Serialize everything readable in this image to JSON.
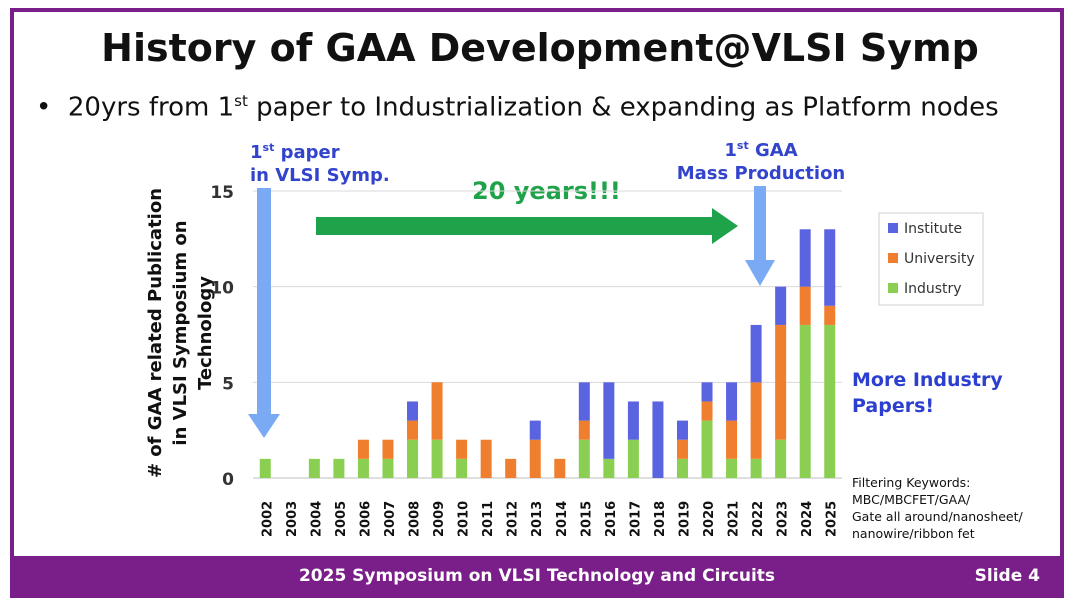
{
  "slide": {
    "title": "History of GAA Development@VLSI Symp",
    "bullet_main": "20yrs from 1",
    "bullet_sup": "st",
    "bullet_rest": " paper to Industrialization & expanding as Platform nodes",
    "footer": "2025 Symposium on VLSI Technology and Circuits",
    "slide_number": "Slide 4",
    "accent_color": "#7a1f8a"
  },
  "annotations": {
    "first_paper_num": "1",
    "first_paper_sup": "st",
    "first_paper_word": " paper",
    "first_paper_line2": "in VLSI Symp.",
    "mass_num": "1",
    "mass_sup": "st",
    "mass_word": " GAA",
    "mass_line2": "Mass Production",
    "twenty_years": "20 years!!!",
    "more_industry_line1": "More Industry",
    "more_industry_line2": "Papers!",
    "filter_lines": [
      "Filtering Keywords:",
      "MBC/MBCFET/GAA/",
      "Gate all around/nanosheet/",
      "nanowire/ribbon fet"
    ]
  },
  "chart_data": {
    "type": "bar",
    "stacked": true,
    "title": "",
    "xlabel": "",
    "ylabel_line1": "# of GAA related Publication",
    "ylabel_line2": "in VLSI Symposium on Technology",
    "ylim": [
      0,
      15
    ],
    "yticks": [
      0,
      5,
      10,
      15
    ],
    "categories": [
      "2002",
      "2003",
      "2004",
      "2005",
      "2006",
      "2007",
      "2008",
      "2009",
      "2010",
      "2011",
      "2012",
      "2013",
      "2014",
      "2015",
      "2016",
      "2017",
      "2018",
      "2019",
      "2020",
      "2021",
      "2022",
      "2023",
      "2024",
      "2025"
    ],
    "series": [
      {
        "name": "Industry",
        "color": "#8bcf52",
        "values": [
          1,
          0,
          1,
          1,
          1,
          1,
          2,
          2,
          1,
          0,
          0,
          0,
          0,
          2,
          1,
          2,
          0,
          1,
          3,
          1,
          1,
          2,
          8,
          8
        ]
      },
      {
        "name": "University",
        "color": "#ef7f2e",
        "values": [
          0,
          0,
          0,
          0,
          1,
          1,
          1,
          3,
          1,
          2,
          1,
          2,
          1,
          1,
          0,
          0,
          0,
          1,
          1,
          2,
          4,
          6,
          2,
          1
        ]
      },
      {
        "name": "Institute",
        "color": "#5a63e0",
        "values": [
          0,
          0,
          0,
          0,
          0,
          0,
          1,
          0,
          0,
          0,
          0,
          1,
          0,
          2,
          4,
          2,
          4,
          1,
          1,
          2,
          3,
          2,
          3,
          4
        ]
      }
    ],
    "legend_order": [
      "Institute",
      "University",
      "Industry"
    ],
    "legend_position": "top-right",
    "grid": true
  }
}
